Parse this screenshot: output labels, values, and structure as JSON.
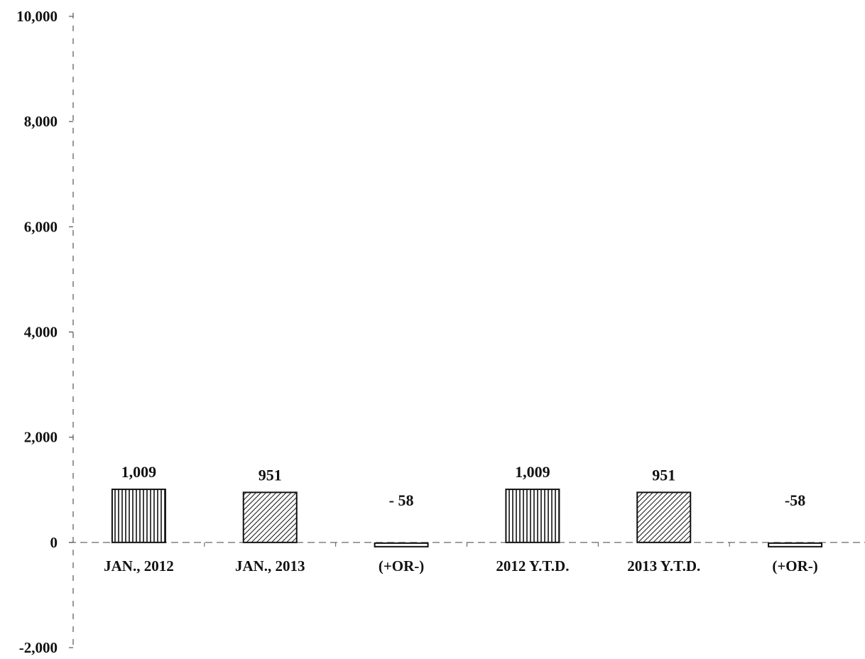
{
  "chart_data": {
    "type": "bar",
    "categories": [
      "JAN., 2012",
      "JAN., 2013",
      "(+OR-)",
      "2012 Y.T.D.",
      "2013 Y.T.D.",
      "(+OR-)"
    ],
    "values": [
      1009,
      951,
      -58,
      1009,
      951,
      -58
    ],
    "data_labels": [
      "1,009",
      "951",
      "- 58",
      "1,009",
      "951",
      "-58"
    ],
    "patterns": [
      "vertical",
      "diagonal",
      "blank",
      "vertical",
      "diagonal",
      "blank"
    ],
    "ylim": [
      -2000,
      10000
    ],
    "yticks": [
      {
        "value": 10000,
        "label": "10,000"
      },
      {
        "value": 8000,
        "label": "8,000"
      },
      {
        "value": 6000,
        "label": "6,000"
      },
      {
        "value": 4000,
        "label": "4,000"
      },
      {
        "value": 2000,
        "label": "2,000"
      },
      {
        "value": 0,
        "label": "0"
      },
      {
        "value": -2000,
        "label": "-2,000"
      }
    ],
    "title": "",
    "xlabel": "",
    "ylabel": "",
    "grid": false,
    "legend": "none",
    "colors": {
      "ink": "#111111",
      "fill": "#ffffff"
    }
  }
}
